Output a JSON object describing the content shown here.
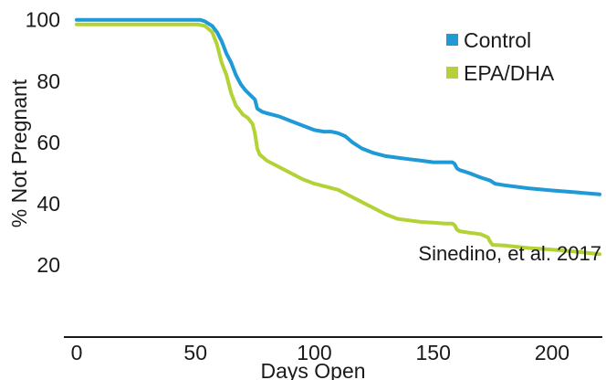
{
  "chart_data": {
    "type": "line",
    "xlabel": "Days Open",
    "ylabel": "% Not Pregnant",
    "xlim": [
      0,
      220
    ],
    "ylim": [
      17,
      102
    ],
    "xticks": [
      "0",
      "50",
      "100",
      "150",
      "200"
    ],
    "yticks": [
      "20",
      "40",
      "60",
      "80",
      "100"
    ],
    "grid": false,
    "legend_position": "top-right",
    "annotation": "Sinedino, et al. 2017",
    "series": [
      {
        "name": "Control",
        "color": "#1f9ad6",
        "x": [
          0,
          52,
          54,
          57,
          59,
          61,
          63,
          65,
          67,
          69,
          71,
          73,
          75,
          76,
          78,
          80,
          85,
          90,
          95,
          100,
          104,
          107,
          110,
          113,
          116,
          120,
          125,
          130,
          135,
          140,
          145,
          150,
          155,
          158,
          159,
          160,
          161,
          165,
          170,
          174,
          175,
          176,
          180,
          190,
          200,
          210,
          220
        ],
        "y": [
          100,
          100,
          99.5,
          98,
          96,
          93,
          89,
          86,
          82,
          79,
          77,
          75.5,
          74,
          71,
          70,
          69.5,
          68.5,
          67,
          65.5,
          64,
          63.5,
          63.5,
          63,
          62,
          60,
          58,
          56.5,
          55.5,
          55,
          54.5,
          54,
          53.5,
          53.5,
          53.5,
          53,
          51.5,
          51,
          50,
          48.5,
          47.5,
          47,
          46.5,
          46,
          45,
          44.3,
          43.7,
          43
        ]
      },
      {
        "name": "EPA/DHA",
        "color": "#b2d235",
        "x": [
          0,
          51,
          54,
          57,
          59,
          60,
          61,
          62,
          63,
          64,
          65,
          66,
          67,
          68,
          70,
          72,
          74,
          75,
          76,
          77,
          80,
          85,
          90,
          95,
          100,
          105,
          110,
          115,
          120,
          125,
          130,
          135,
          140,
          145,
          150,
          155,
          158,
          159,
          160,
          161,
          165,
          170,
          173,
          174,
          175,
          180,
          190,
          200,
          210,
          220
        ],
        "y": [
          98.5,
          98.5,
          98,
          96,
          92,
          89,
          86,
          84,
          82,
          79,
          76,
          74,
          72,
          71,
          69,
          68,
          66,
          63,
          58,
          56,
          54,
          52,
          50,
          48,
          46.5,
          45.5,
          44.5,
          42.5,
          40.5,
          38.5,
          36.5,
          35,
          34.5,
          34,
          33.8,
          33.5,
          33.5,
          33,
          31.5,
          31,
          30.5,
          30,
          29,
          27.5,
          26.5,
          26.3,
          25.5,
          25,
          24.3,
          23.5
        ]
      }
    ]
  }
}
